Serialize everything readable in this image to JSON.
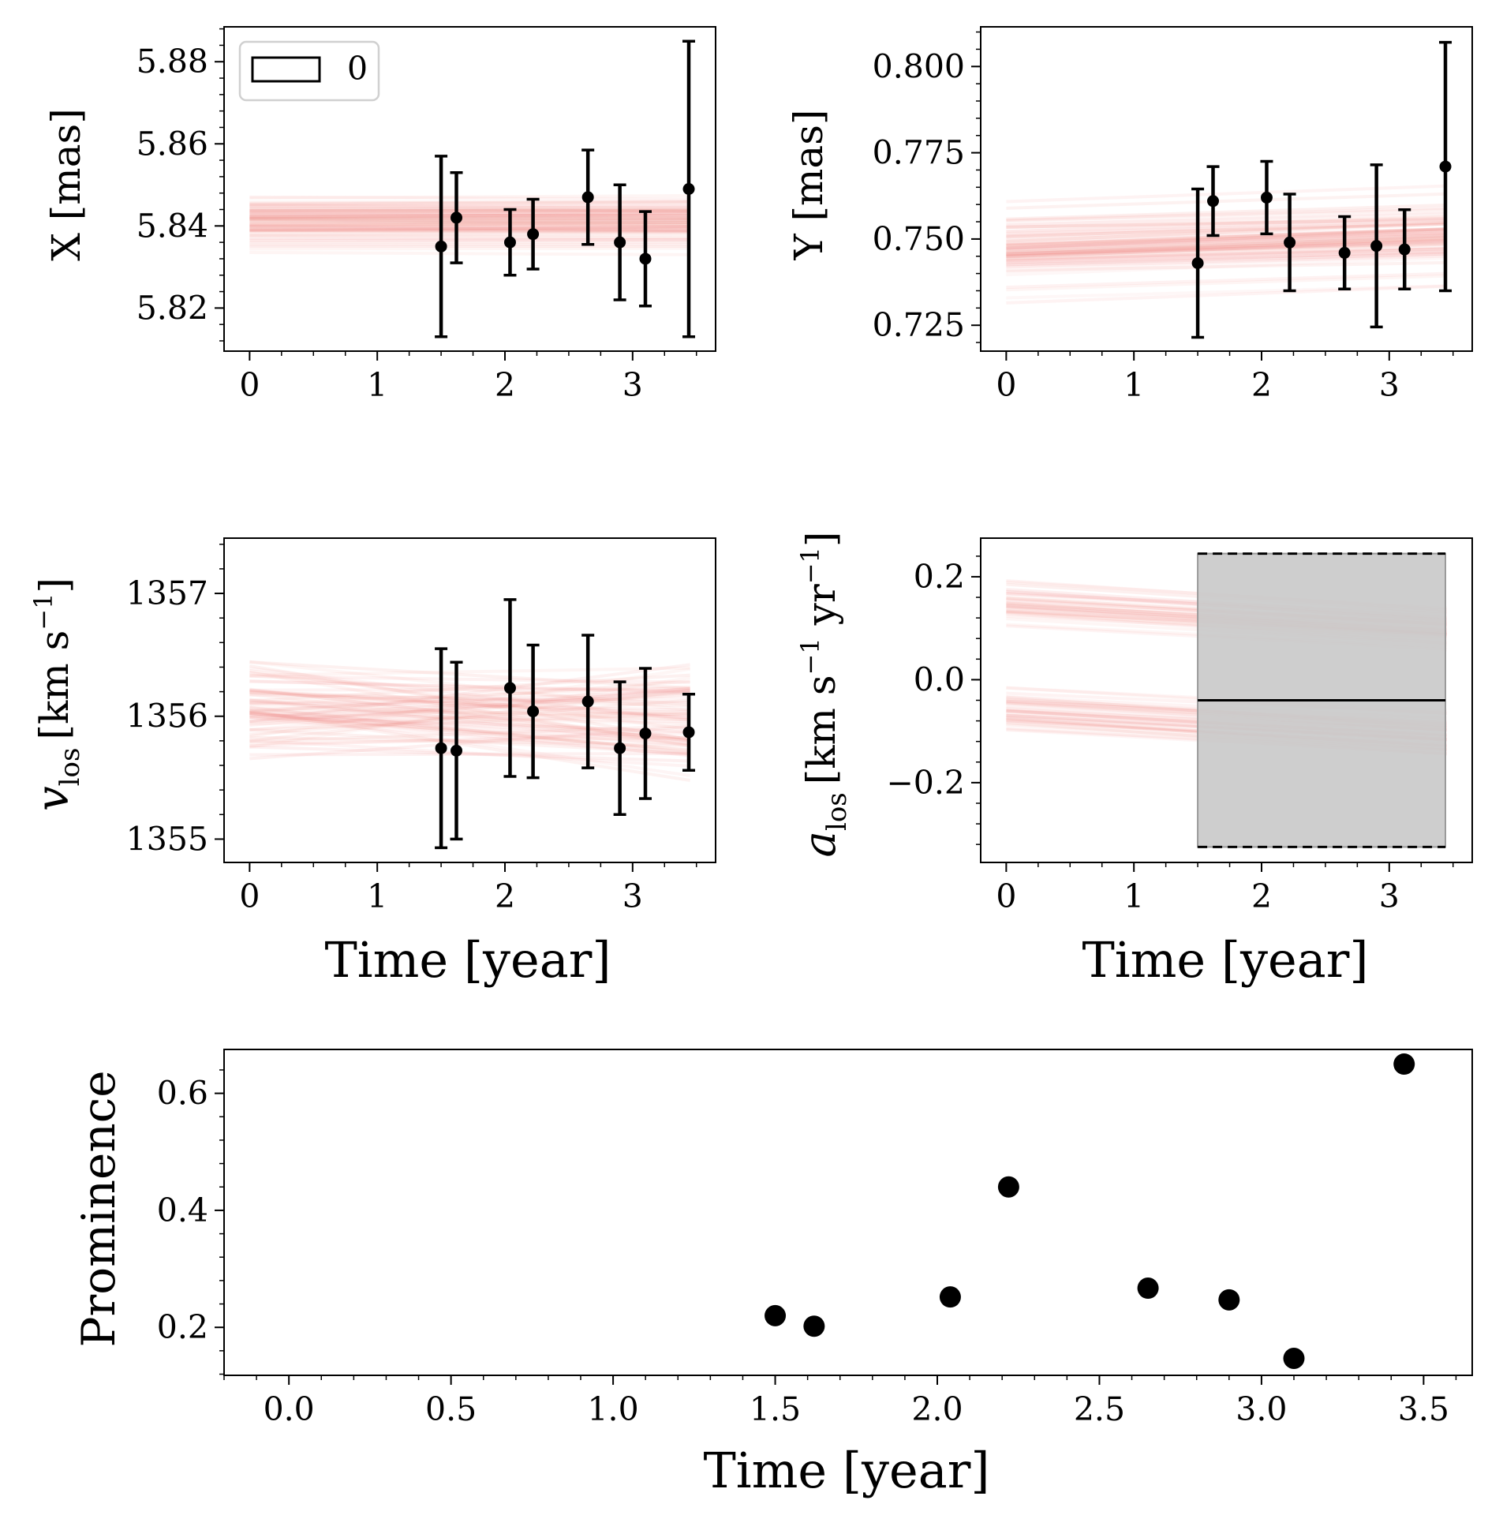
{
  "colors": {
    "model": "#f07f78",
    "data": "#000000",
    "shade": "#c9c9c9"
  },
  "chart_data": [
    {
      "id": "x",
      "type": "line",
      "ylabel": "X [mas]",
      "xlim": [
        -0.2,
        3.65
      ],
      "ylim": [
        5.8095,
        5.8885
      ],
      "xticks": [
        0,
        1,
        2,
        3
      ],
      "xtick_labels": [
        "0",
        "1",
        "2",
        "3"
      ],
      "yticks": [
        5.82,
        5.84,
        5.86,
        5.88
      ],
      "ytick_labels": [
        "5.82",
        "5.84",
        "5.86",
        "5.88"
      ],
      "legend": {
        "position": "top-left",
        "label": "0"
      },
      "model_band": {
        "x0": 0,
        "x1": 3.45,
        "center0": 5.8405,
        "center1": 5.8405,
        "spread": 0.012
      },
      "points": [
        {
          "x": 1.5,
          "y": 5.835,
          "err": 0.022
        },
        {
          "x": 1.62,
          "y": 5.842,
          "err": 0.011
        },
        {
          "x": 2.04,
          "y": 5.836,
          "err": 0.008
        },
        {
          "x": 2.22,
          "y": 5.838,
          "err": 0.0085
        },
        {
          "x": 2.65,
          "y": 5.847,
          "err": 0.0115
        },
        {
          "x": 2.9,
          "y": 5.836,
          "err": 0.014
        },
        {
          "x": 3.1,
          "y": 5.832,
          "err": 0.0115
        },
        {
          "x": 3.44,
          "y": 5.849,
          "err": 0.036
        }
      ]
    },
    {
      "id": "y",
      "type": "line",
      "ylabel": "Y [mas]",
      "xlim": [
        -0.2,
        3.65
      ],
      "ylim": [
        0.7175,
        0.8115
      ],
      "xticks": [
        0,
        1,
        2,
        3
      ],
      "xtick_labels": [
        "0",
        "1",
        "2",
        "3"
      ],
      "yticks": [
        0.725,
        0.75,
        0.775,
        0.8
      ],
      "ytick_labels": [
        "0.725",
        "0.750",
        "0.775",
        "0.800"
      ],
      "model_band": {
        "x0": 0,
        "x1": 3.45,
        "center0": 0.748,
        "center1": 0.752,
        "spread": 0.02
      },
      "points": [
        {
          "x": 1.5,
          "y": 0.743,
          "err": 0.0215
        },
        {
          "x": 1.62,
          "y": 0.761,
          "err": 0.01
        },
        {
          "x": 2.04,
          "y": 0.762,
          "err": 0.0105
        },
        {
          "x": 2.22,
          "y": 0.749,
          "err": 0.014
        },
        {
          "x": 2.65,
          "y": 0.746,
          "err": 0.0105
        },
        {
          "x": 2.9,
          "y": 0.748,
          "err": 0.0235
        },
        {
          "x": 3.12,
          "y": 0.747,
          "err": 0.0115
        },
        {
          "x": 3.44,
          "y": 0.771,
          "err": 0.036
        }
      ]
    },
    {
      "id": "vlos",
      "type": "line",
      "ylabel": "v_los [km s^-1]",
      "ylabel_main": "v",
      "ylabel_sub": "los",
      "ylabel_rest": "[km s",
      "ylabel_sup": "−1",
      "ylabel_close": "]",
      "xlabel": "Time [year]",
      "xlim": [
        -0.2,
        3.65
      ],
      "ylim": [
        1354.81,
        1357.45
      ],
      "xticks": [
        0,
        1,
        2,
        3
      ],
      "xtick_labels": [
        "0",
        "1",
        "2",
        "3"
      ],
      "yticks": [
        1355,
        1356,
        1357
      ],
      "ytick_labels": [
        "1355",
        "1356",
        "1357"
      ],
      "model_band": {
        "x0": 0,
        "x1": 3.45,
        "center0": 1356.1,
        "center1": 1355.95,
        "spread": 0.85,
        "cross": true
      },
      "points": [
        {
          "x": 1.5,
          "y": 1355.74,
          "err": 0.81
        },
        {
          "x": 1.62,
          "y": 1355.72,
          "err": 0.72
        },
        {
          "x": 2.04,
          "y": 1356.23,
          "err": 0.72
        },
        {
          "x": 2.22,
          "y": 1356.04,
          "err": 0.54
        },
        {
          "x": 2.65,
          "y": 1356.12,
          "err": 0.54
        },
        {
          "x": 2.9,
          "y": 1355.74,
          "err": 0.54
        },
        {
          "x": 3.1,
          "y": 1355.86,
          "err": 0.53
        },
        {
          "x": 3.44,
          "y": 1355.87,
          "err": 0.31
        }
      ]
    },
    {
      "id": "alos",
      "type": "line",
      "ylabel": "a_los [km s^-1 yr^-1]",
      "ylabel_main": "a",
      "ylabel_sub": "los",
      "ylabel_rest": "[km s",
      "ylabel_sup": "−1",
      "ylabel_rest2": " yr",
      "ylabel_sup2": "−1",
      "ylabel_close": "]",
      "xlabel": "Time [year]",
      "xlim": [
        -0.2,
        3.65
      ],
      "ylim": [
        -0.355,
        0.275
      ],
      "xticks": [
        0,
        1,
        2,
        3
      ],
      "xtick_labels": [
        "0",
        "1",
        "2",
        "3"
      ],
      "yticks": [
        -0.2,
        0.0,
        0.2
      ],
      "ytick_labels": [
        "−0.2",
        "0.0",
        "0.2"
      ],
      "model_band": {
        "x0": 0,
        "x1": 3.45,
        "upper": 0.14,
        "lower": -0.07,
        "spread": 0.09
      },
      "measurement": {
        "x0": 1.5,
        "x1": 3.44,
        "value": -0.04,
        "upper": 0.245,
        "lower": -0.325
      }
    },
    {
      "id": "prominence",
      "type": "scatter",
      "ylabel": "Prominence",
      "xlabel": "Time [year]",
      "xlim": [
        -0.2,
        3.65
      ],
      "ylim": [
        0.118,
        0.675
      ],
      "xticks": [
        0,
        0.5,
        1,
        1.5,
        2,
        2.5,
        3,
        3.5
      ],
      "xtick_labels": [
        "0.0",
        "0.5",
        "1.0",
        "1.5",
        "2.0",
        "2.5",
        "3.0",
        "3.5"
      ],
      "yticks": [
        0.2,
        0.4,
        0.6
      ],
      "ytick_labels": [
        "0.2",
        "0.4",
        "0.6"
      ],
      "points": [
        {
          "x": 1.5,
          "y": 0.22
        },
        {
          "x": 1.62,
          "y": 0.202
        },
        {
          "x": 2.04,
          "y": 0.252
        },
        {
          "x": 2.22,
          "y": 0.44
        },
        {
          "x": 2.65,
          "y": 0.267
        },
        {
          "x": 2.9,
          "y": 0.247
        },
        {
          "x": 3.1,
          "y": 0.147
        },
        {
          "x": 3.44,
          "y": 0.65
        }
      ]
    }
  ]
}
